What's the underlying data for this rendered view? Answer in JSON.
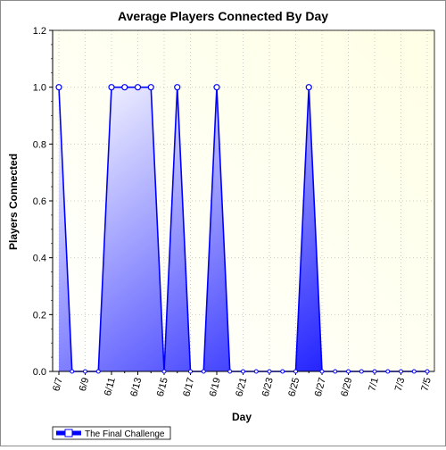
{
  "chart_data": {
    "type": "area",
    "title": "Average Players Connected By Day",
    "xlabel": "Day",
    "ylabel": "Players Connected",
    "ylim": [
      0,
      1.2
    ],
    "y_ticks": [
      "0.0",
      "0.2",
      "0.4",
      "0.6",
      "0.8",
      "1.0",
      "1.2"
    ],
    "x_tick_labels": [
      "6/7",
      "6/9",
      "6/11",
      "6/13",
      "6/15",
      "6/17",
      "6/19",
      "6/21",
      "6/23",
      "6/25",
      "6/27",
      "6/29",
      "7/1",
      "7/3",
      "7/5"
    ],
    "x": [
      "6/7",
      "6/8",
      "6/9",
      "6/10",
      "6/11",
      "6/12",
      "6/13",
      "6/14",
      "6/15",
      "6/16",
      "6/17",
      "6/18",
      "6/19",
      "6/20",
      "6/21",
      "6/22",
      "6/23",
      "6/24",
      "6/25",
      "6/26",
      "6/27",
      "6/28",
      "6/29",
      "6/30",
      "7/1",
      "7/2",
      "7/3",
      "7/4",
      "7/5"
    ],
    "series": [
      {
        "name": "The Final Challenge",
        "values": [
          1,
          0,
          0,
          0,
          1,
          1,
          1,
          1,
          0,
          1,
          0,
          0,
          1,
          0,
          0,
          0,
          0,
          0,
          0,
          1,
          0,
          0,
          0,
          0,
          0,
          0,
          0,
          0,
          0
        ]
      }
    ],
    "grid": true,
    "legend_position": "bottom-left",
    "colors": {
      "series_line": "#0000ff",
      "series_fill_light": "#ffffff",
      "series_fill_dark": "#0000ff",
      "plot_bg_left": "#ffffff",
      "plot_bg_right": "#ffffe6",
      "grid": "#cccccc",
      "marker_fill": "#ffffff"
    }
  }
}
